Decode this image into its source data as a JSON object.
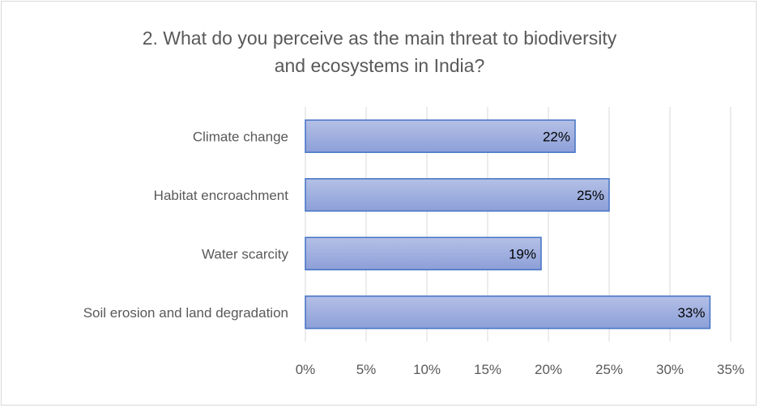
{
  "chart_data": {
    "type": "bar",
    "orientation": "horizontal",
    "title_lines": [
      "2.  What do you perceive as the main threat to biodiversity",
      "and ecosystems in India?"
    ],
    "categories": [
      "Climate change",
      "Habitat encroachment",
      "Water scarcity",
      "Soil erosion and land degradation"
    ],
    "values": [
      22.2,
      25,
      19.4,
      33.3
    ],
    "data_labels": [
      "22%",
      "25%",
      "19%",
      "33%"
    ],
    "xlim": [
      0,
      35
    ],
    "x_ticks": [
      0,
      5,
      10,
      15,
      20,
      25,
      30,
      35
    ],
    "x_tick_labels": [
      "0%",
      "5%",
      "10%",
      "15%",
      "20%",
      "25%",
      "30%",
      "35%"
    ],
    "grid": "vertical",
    "legend": "none",
    "colors": {
      "bar_fill_top": "#b4c0e6",
      "bar_fill_bottom": "#8c9fd8",
      "bar_stroke": "#4472c4",
      "grid": "#d9d9d9"
    }
  }
}
